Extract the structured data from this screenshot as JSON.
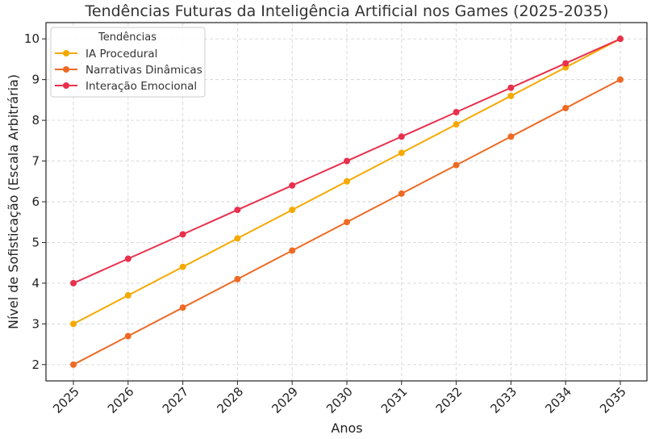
{
  "chart_data": {
    "type": "line",
    "title": "Tendências Futuras da Inteligência Artificial nos Games (2025-2035)",
    "xlabel": "Anos",
    "ylabel": "Nível de Sofisticação (Escala Arbitrária)",
    "x": [
      "2025",
      "2026",
      "2027",
      "2028",
      "2029",
      "2030",
      "2031",
      "2032",
      "2033",
      "2034",
      "2035"
    ],
    "ylim": [
      1.6,
      10.4
    ],
    "yticks": [
      2,
      3,
      4,
      5,
      6,
      7,
      8,
      9,
      10
    ],
    "grid": true,
    "legend": {
      "title": "Tendências",
      "placement": "top-left"
    },
    "series": [
      {
        "name": "IA Procedural",
        "color": "#F5A900",
        "values": [
          3.0,
          3.7,
          4.4,
          5.1,
          5.8,
          6.5,
          7.2,
          7.9,
          8.6,
          9.3,
          10.0
        ]
      },
      {
        "name": "Narrativas Dinâmicas",
        "color": "#EE6A24",
        "values": [
          2.0,
          2.7,
          3.4,
          4.1,
          4.8,
          5.5,
          6.2,
          6.9,
          7.6,
          8.3,
          9.0
        ]
      },
      {
        "name": "Interação Emocional",
        "color": "#E8304D",
        "values": [
          4.0,
          4.6,
          5.2,
          5.8,
          6.4,
          7.0,
          7.6,
          8.2,
          8.8,
          9.4,
          10.0
        ]
      }
    ]
  }
}
